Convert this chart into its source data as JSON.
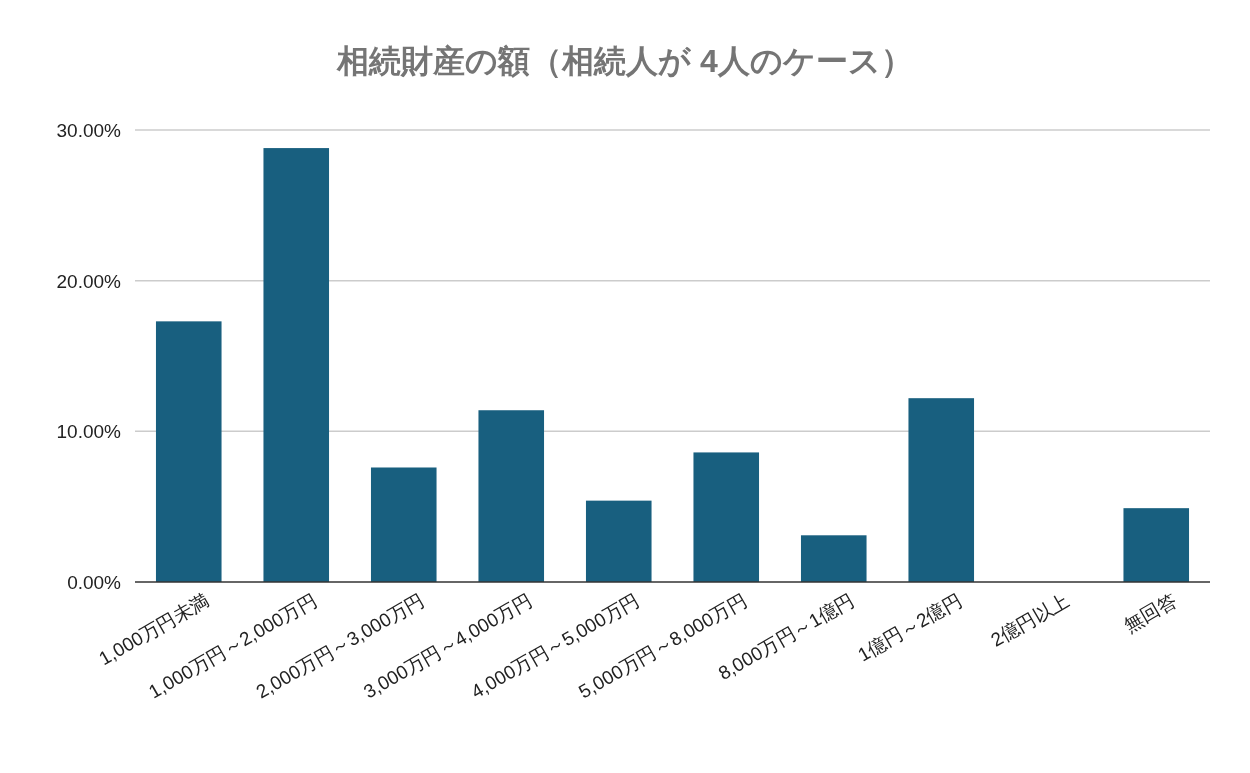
{
  "chart_data": {
    "type": "bar",
    "title": "相続財産の額（相続人が 4人のケース）",
    "categories": [
      "1,000万円未満",
      "1,000万円～2,000万円",
      "2,000万円～3,000万円",
      "3,000万円～4,000万円",
      "4,000万円～5,000万円",
      "5,000万円～8,000万円",
      "8,000万円～1億円",
      "1億円～2億円",
      "2億円以上",
      "無回答"
    ],
    "values": [
      17.3,
      28.8,
      7.6,
      11.4,
      5.4,
      8.6,
      3.1,
      12.2,
      0,
      4.9
    ],
    "color": "#185f7f",
    "ylim": [
      0,
      30
    ],
    "yticks": [
      {
        "value": 0,
        "label": "0.00%"
      },
      {
        "value": 10,
        "label": "10.00%"
      },
      {
        "value": 20,
        "label": "20.00%"
      },
      {
        "value": 30,
        "label": "30.00%"
      }
    ],
    "grid": "y"
  }
}
